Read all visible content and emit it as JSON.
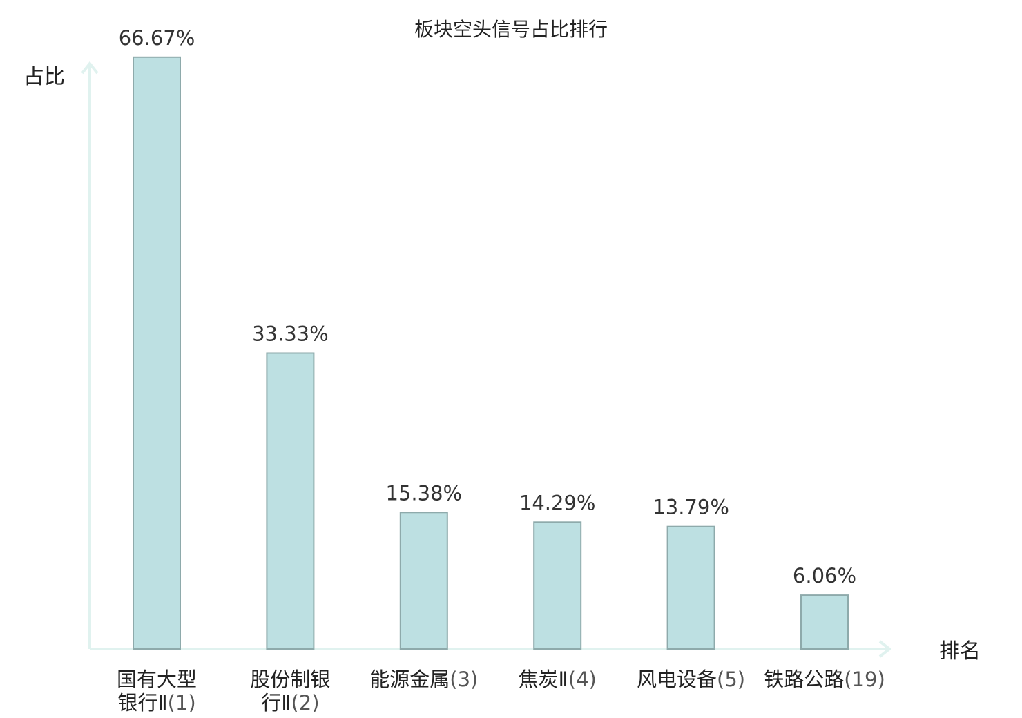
{
  "chart_data": {
    "type": "bar",
    "title": "板块空头信号占比排行",
    "ylabel": "占比",
    "xlabel": "排名",
    "ylim": [
      0,
      70
    ],
    "grid": false,
    "categories": [
      {
        "lines": [
          "国有大型",
          "银行Ⅱ"
        ],
        "rank": "(1)",
        "highlight": false
      },
      {
        "lines": [
          "股份制银",
          "行Ⅱ"
        ],
        "rank": "(2)",
        "highlight": false
      },
      {
        "lines": [
          "能源金属"
        ],
        "rank": "(3)",
        "highlight": false
      },
      {
        "lines": [
          "焦炭Ⅱ"
        ],
        "rank": "(4)",
        "highlight": false
      },
      {
        "lines": [
          "风电设备"
        ],
        "rank": "(5)",
        "highlight": false
      },
      {
        "lines": [
          "铁路公路"
        ],
        "rank": "(19)",
        "highlight": true
      }
    ],
    "values": [
      66.67,
      33.33,
      15.38,
      14.29,
      13.79,
      6.06
    ],
    "value_labels": [
      "66.67%",
      "33.33%",
      "15.38%",
      "14.29%",
      "13.79%",
      "6.06%"
    ]
  },
  "colors": {
    "bar_fill": "#bde0e2",
    "bar_stroke": "#8eaaab",
    "axis": "#e0f2ef",
    "highlight": "#e41a1a",
    "text": "#222222"
  }
}
